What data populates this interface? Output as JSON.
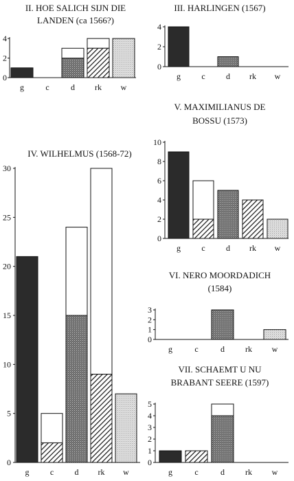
{
  "chart_data": [
    {
      "type": "bar",
      "id": "p2",
      "title_lines": [
        "II. HOE SALICH SIJN DIE",
        "LANDEN (ca 1566?)"
      ],
      "categories": [
        "g",
        "c",
        "d",
        "rk",
        "w"
      ],
      "ylim": [
        0,
        4
      ],
      "yticks": [
        0,
        2,
        4
      ],
      "total": [
        1,
        0,
        3,
        4,
        4
      ],
      "lower": [
        1,
        0,
        2,
        3,
        4
      ],
      "fill_colors": {
        "g": "#2b2b2b",
        "c": "#ffffff",
        "d": "#7a7a7a",
        "rk": "hatch",
        "w": "#d9d9d9"
      }
    },
    {
      "type": "bar",
      "id": "p3",
      "title_lines": [
        "III. HARLINGEN (1567)"
      ],
      "categories": [
        "g",
        "c",
        "d",
        "rk",
        "w"
      ],
      "ylim": [
        0,
        4
      ],
      "yticks": [
        0,
        2,
        4
      ],
      "total": [
        4,
        0,
        1,
        0,
        0
      ],
      "lower": [
        4,
        0,
        1,
        0,
        0
      ]
    },
    {
      "type": "bar",
      "id": "p4",
      "title_lines": [
        "IV. WILHELMUS (1568-72)"
      ],
      "categories": [
        "g",
        "c",
        "d",
        "rk",
        "w"
      ],
      "ylim": [
        0,
        30
      ],
      "yticks": [
        0,
        5,
        10,
        15,
        20,
        25,
        30
      ],
      "total": [
        21,
        5,
        24,
        30,
        7
      ],
      "lower": [
        21,
        2,
        15,
        9,
        7
      ]
    },
    {
      "type": "bar",
      "id": "p5",
      "title_lines": [
        "V. MAXIMILIANUS DE",
        "BOSSU (1573)"
      ],
      "categories": [
        "g",
        "c",
        "d",
        "rk",
        "w"
      ],
      "ylim": [
        0,
        10
      ],
      "yticks": [
        0,
        2,
        4,
        6,
        8,
        10
      ],
      "total": [
        9,
        6,
        5,
        4,
        2
      ],
      "lower": [
        9,
        2,
        5,
        4,
        2
      ]
    },
    {
      "type": "bar",
      "id": "p6",
      "title_lines": [
        "VI. NERO MOORDADICH",
        "(1584)"
      ],
      "categories": [
        "g",
        "c",
        "d",
        "rk",
        "w"
      ],
      "ylim": [
        0,
        3
      ],
      "yticks": [
        0,
        1,
        2,
        3
      ],
      "total": [
        0,
        0,
        3,
        0,
        1
      ],
      "lower": [
        0,
        0,
        3,
        0,
        1
      ]
    },
    {
      "type": "bar",
      "id": "p7",
      "title_lines": [
        "VII. SCHAEMT U NU",
        "BRABANT SEERE (1597)"
      ],
      "categories": [
        "g",
        "c",
        "d",
        "rk",
        "w"
      ],
      "ylim": [
        0,
        5
      ],
      "yticks": [
        0,
        1,
        2,
        3,
        4,
        5
      ],
      "total": [
        1,
        1,
        5,
        0,
        0
      ],
      "lower": [
        1,
        1,
        4,
        0,
        0
      ]
    }
  ]
}
